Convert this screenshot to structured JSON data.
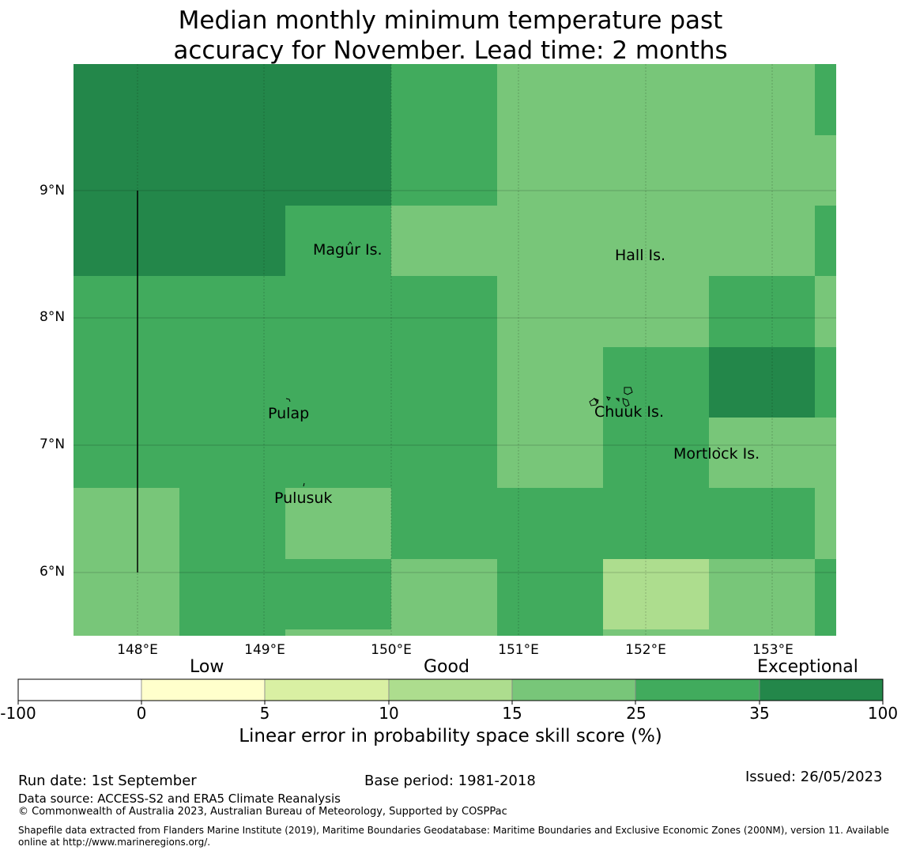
{
  "title_line1": "Median monthly minimum temperature past",
  "title_line2": "accuracy for November. Lead time: 2 months",
  "map": {
    "lat_labels": [
      "9°N",
      "8°N",
      "7°N",
      "6°N"
    ],
    "lon_labels": [
      "148°E",
      "149°E",
      "150°E",
      "151°E",
      "152°E",
      "153°E"
    ],
    "places": [
      "Magur Is.",
      "Hall Is.",
      "Pulap",
      "Chuuk Is.",
      "Mortlock Is.",
      "Pulusuk"
    ],
    "colors": {
      "exceptional_dark": "#23874a",
      "band_25_35": "#41ab5d",
      "band_15_25": "#78c679",
      "band_10_15": "#addd8e",
      "band_5_10": "#d9f0a3",
      "band_0_5": "#ffffcc",
      "band_neg": "#ffffff"
    }
  },
  "colorbar": {
    "category_labels": [
      "Low",
      "Good",
      "Exceptional"
    ],
    "tick_labels": [
      "-100",
      "0",
      "5",
      "10",
      "15",
      "25",
      "35",
      "100"
    ],
    "title": "Linear error in probability space skill score (%)"
  },
  "footer": {
    "run_date": "Run date: 1st September",
    "base_period": "Base period: 1981-2018",
    "issued": "Issued: 26/05/2023",
    "data_source": "Data source: ACCESS-S2 and ERA5 Climate Reanalysis",
    "copyright": "© Commonwealth of Australia 2023, Australian Bureau of Meteorology, Supported by COSPPac",
    "shapefile_line1": "Shapefile data extracted from Flanders Marine Institute (2019), Maritime Boundaries Geodatabase: Maritime Boundaries and Exclusive Economic Zones (200NM), version 11. Available",
    "shapefile_line2": "online at http://www.marineregions.org/."
  }
}
